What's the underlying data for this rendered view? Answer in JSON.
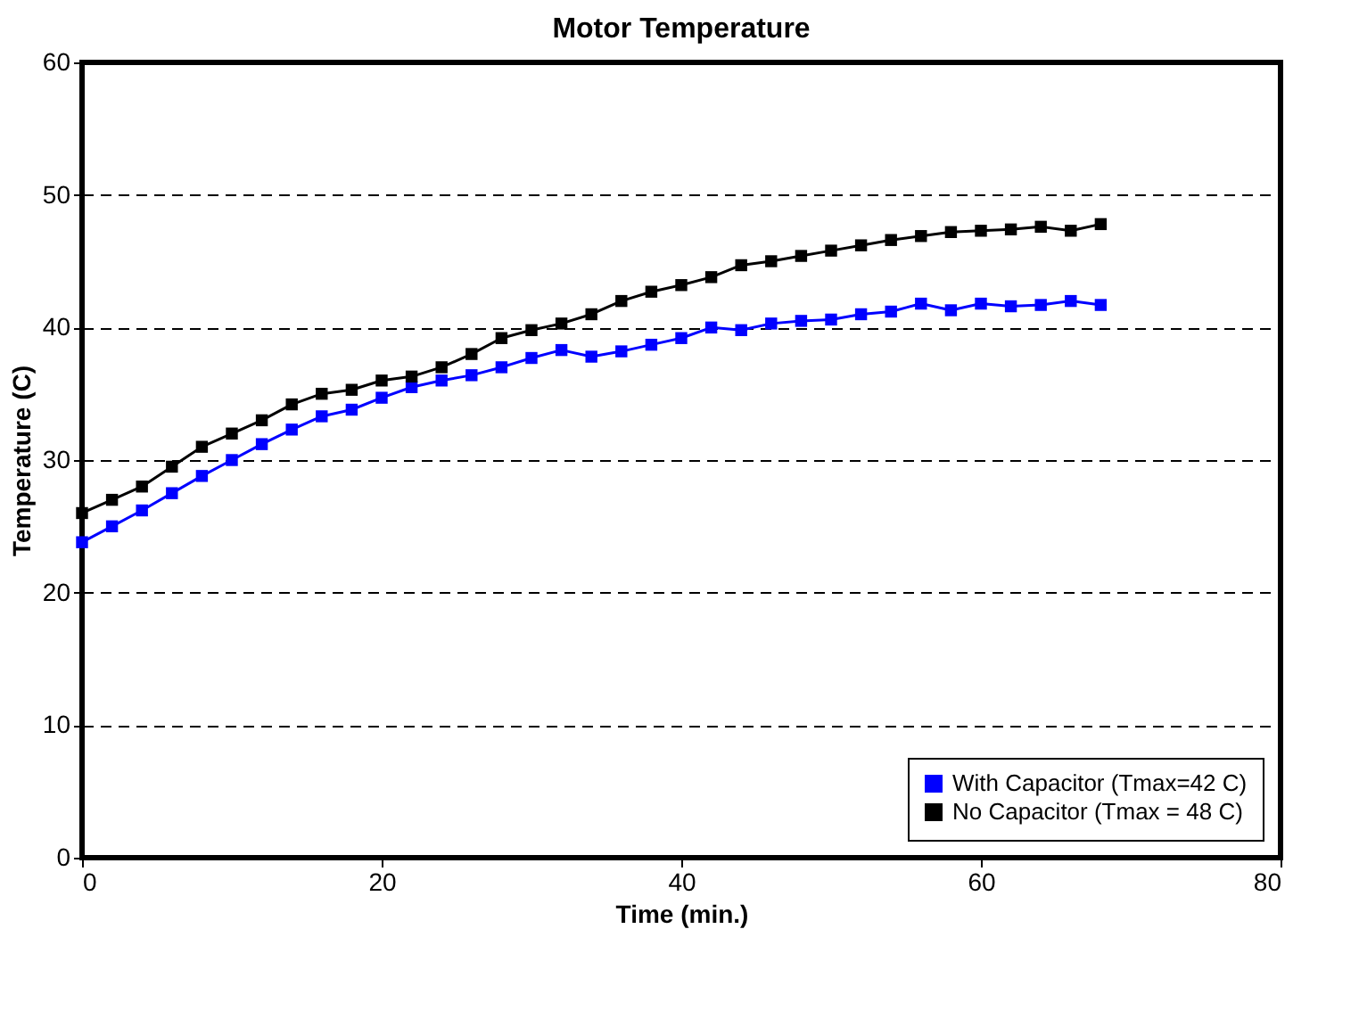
{
  "chart_data": {
    "type": "line",
    "title": "Motor Temperature",
    "xlabel": "Time (min.)",
    "ylabel": "Temperature (C)",
    "x": [
      0,
      2,
      4,
      6,
      8,
      10,
      12,
      14,
      16,
      18,
      20,
      22,
      24,
      26,
      28,
      30,
      32,
      34,
      36,
      38,
      40,
      42,
      44,
      46,
      48,
      50,
      52,
      54,
      56,
      58,
      60,
      62,
      64,
      66,
      68
    ],
    "series": [
      {
        "name": "With Capacitor (Tmax=42 C)",
        "color": "#0000ff",
        "values": [
          23.8,
          25,
          26.2,
          27.5,
          28.8,
          30,
          31.2,
          32.3,
          33.3,
          33.8,
          34.7,
          35.5,
          36,
          36.4,
          37,
          37.7,
          38.3,
          37.8,
          38.2,
          38.7,
          39.2,
          40,
          39.8,
          40.3,
          40.5,
          40.6,
          41,
          41.2,
          41.8,
          41.3,
          41.8,
          41.6,
          41.7,
          42,
          41.7
        ]
      },
      {
        "name": "No Capacitor (Tmax = 48 C)",
        "color": "#000000",
        "values": [
          26,
          27,
          28,
          29.5,
          31,
          32,
          33,
          34.2,
          35,
          35.3,
          36,
          36.3,
          37,
          38,
          39.2,
          39.8,
          40.3,
          41,
          42,
          42.7,
          43.2,
          43.8,
          44.7,
          45,
          45.4,
          45.8,
          46.2,
          46.6,
          46.9,
          47.2,
          47.3,
          47.4,
          47.6,
          47.3,
          47.8
        ]
      }
    ],
    "xlim": [
      0,
      80
    ],
    "xticks": [
      0,
      20,
      40,
      60,
      80
    ],
    "ylim": [
      0,
      60
    ],
    "yticks": [
      0,
      10,
      20,
      30,
      40,
      50,
      60
    ],
    "grid": "y",
    "legend": "bottom right",
    "marker": "square",
    "line_style": "solid"
  }
}
